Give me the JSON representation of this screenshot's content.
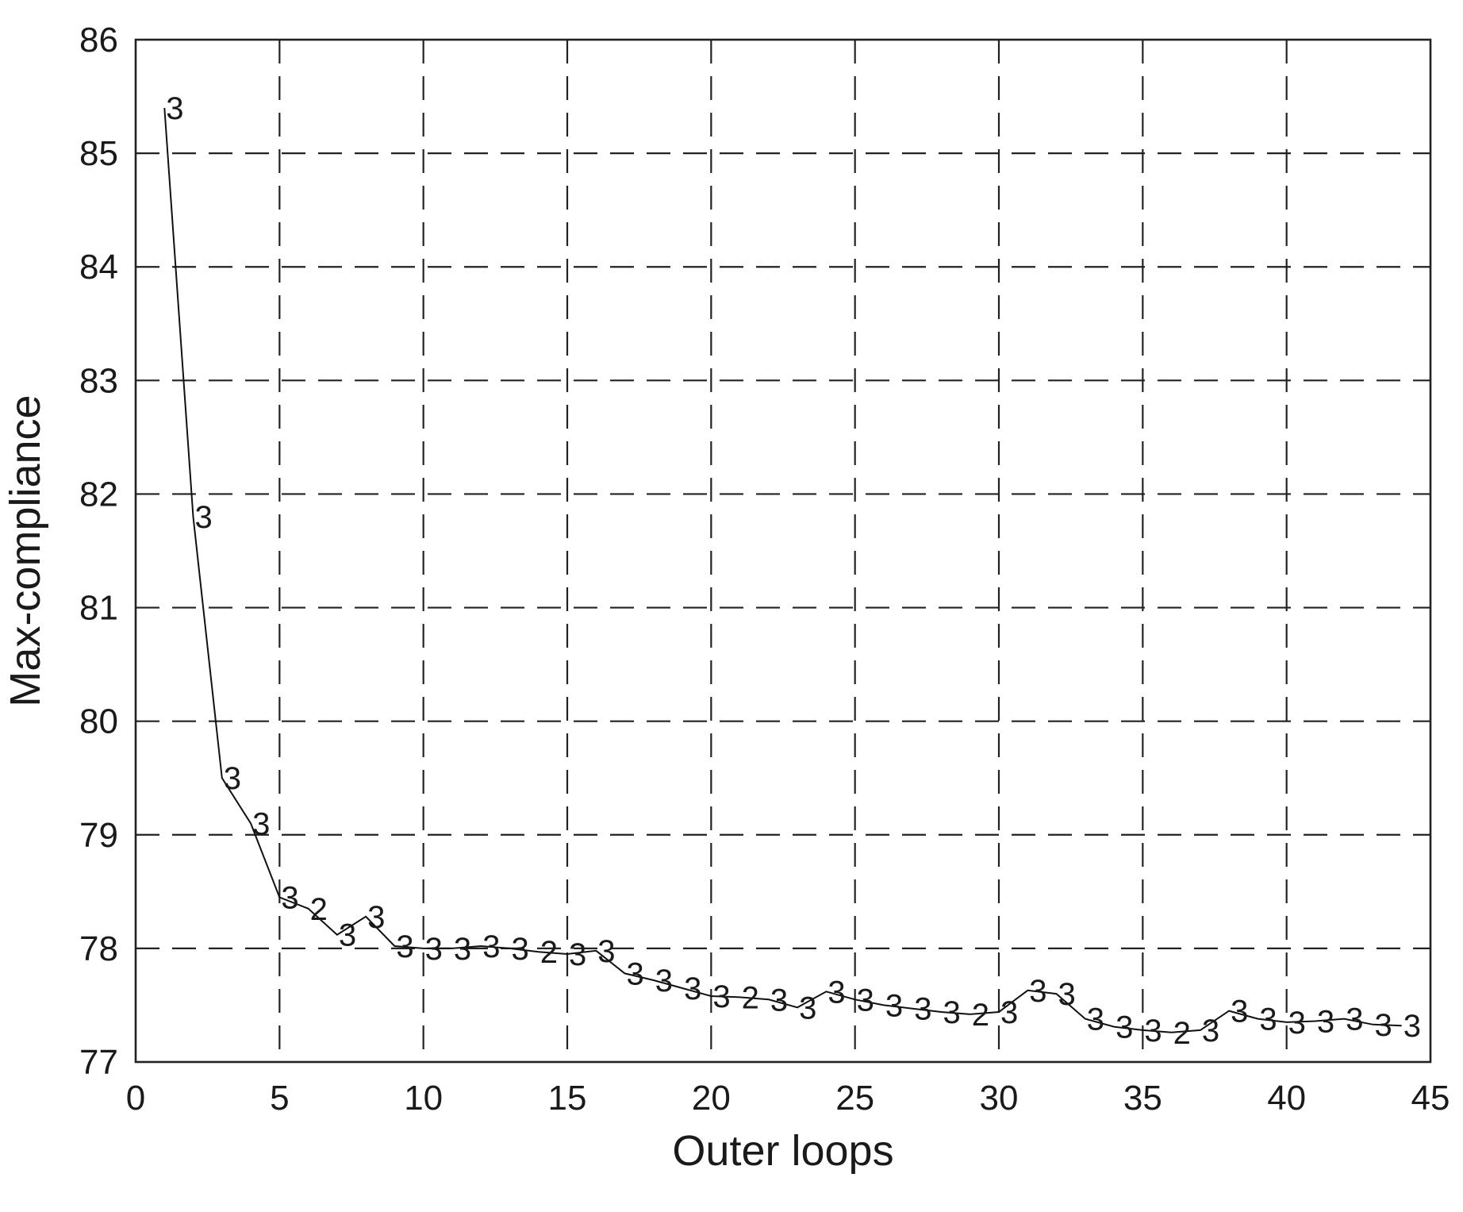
{
  "chart_data": {
    "type": "line",
    "title": "",
    "xlabel": "Outer loops",
    "ylabel": "Max-compliance",
    "xlim": [
      0,
      45
    ],
    "ylim": [
      77,
      86
    ],
    "xticks": [
      "0",
      "5",
      "10",
      "15",
      "20",
      "25",
      "30",
      "35",
      "40",
      "45"
    ],
    "yticks": [
      "77",
      "78",
      "79",
      "80",
      "81",
      "82",
      "83",
      "84",
      "85",
      "86"
    ],
    "grid": true,
    "grid_style": "dashed",
    "legend": "none",
    "line_color": "#111111",
    "series": [
      {
        "x": [
          1,
          2,
          3,
          4,
          5,
          6,
          7,
          8,
          9,
          10,
          11,
          12,
          13,
          14,
          15,
          16,
          17,
          18,
          19,
          20,
          21,
          22,
          23,
          24,
          25,
          26,
          27,
          28,
          29,
          30,
          31,
          32,
          33,
          34,
          35,
          36,
          37,
          38,
          39,
          40,
          41,
          42,
          43,
          44
        ],
        "y": [
          85.4,
          81.8,
          79.5,
          79.1,
          78.45,
          78.35,
          78.12,
          78.28,
          78.02,
          78.0,
          78.0,
          78.02,
          78.0,
          77.97,
          77.95,
          77.98,
          77.78,
          77.72,
          77.65,
          77.58,
          77.57,
          77.55,
          77.48,
          77.62,
          77.55,
          77.5,
          77.47,
          77.44,
          77.42,
          77.44,
          77.63,
          77.6,
          77.38,
          77.31,
          77.28,
          77.26,
          77.28,
          77.45,
          77.38,
          77.35,
          77.36,
          77.38,
          77.33,
          77.32
        ],
        "point_labels": [
          "3",
          "3",
          "3",
          "3",
          "3",
          "2",
          "3",
          "3",
          "3",
          "3",
          "3",
          "3",
          "3",
          "2",
          "3",
          "3",
          "3",
          "3",
          "3",
          "3",
          "2",
          "3",
          "3",
          "3",
          "3",
          "3",
          "3",
          "3",
          "2",
          "3",
          "3",
          "3",
          "3",
          "3",
          "3",
          "2",
          "3",
          "3",
          "3",
          "3",
          "3",
          "3",
          "3",
          "3"
        ]
      }
    ]
  }
}
